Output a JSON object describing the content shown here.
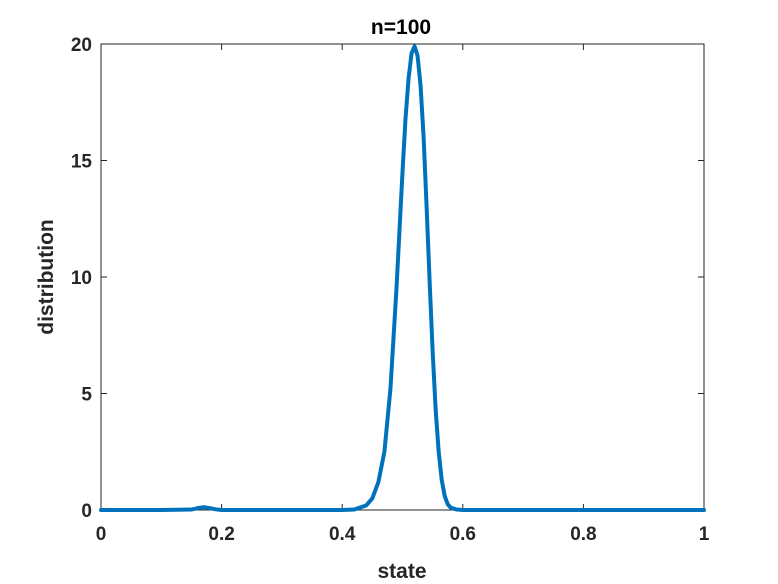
{
  "chart_data": {
    "type": "line",
    "title": "n=100",
    "xlabel": "state",
    "ylabel": "distribution",
    "xlim": [
      0,
      1
    ],
    "ylim": [
      0,
      20
    ],
    "xticks": [
      0,
      0.2,
      0.4,
      0.6,
      0.8,
      1
    ],
    "xtick_labels": [
      "0",
      "0.2",
      "0.4",
      "0.6",
      "0.8",
      "1"
    ],
    "yticks": [
      0,
      5,
      10,
      15,
      20
    ],
    "ytick_labels": [
      "0",
      "5",
      "10",
      "15",
      "20"
    ],
    "grid": false,
    "series": [
      {
        "color": "#0072BD",
        "x": [
          0,
          0.1,
          0.15,
          0.16,
          0.17,
          0.18,
          0.19,
          0.2,
          0.25,
          0.3,
          0.35,
          0.4,
          0.42,
          0.44,
          0.45,
          0.46,
          0.47,
          0.48,
          0.49,
          0.5,
          0.505,
          0.51,
          0.515,
          0.52,
          0.525,
          0.53,
          0.535,
          0.54,
          0.545,
          0.55,
          0.555,
          0.56,
          0.565,
          0.57,
          0.575,
          0.58,
          0.59,
          0.6,
          0.65,
          0.7,
          0.8,
          0.9,
          1
        ],
        "y": [
          0,
          0,
          0.02,
          0.08,
          0.12,
          0.08,
          0.03,
          0,
          0,
          0,
          0,
          0,
          0.02,
          0.2,
          0.5,
          1.2,
          2.5,
          5.2,
          9.5,
          14.5,
          16.8,
          18.5,
          19.6,
          19.9,
          19.5,
          18.2,
          16.0,
          13.0,
          9.8,
          6.8,
          4.3,
          2.5,
          1.3,
          0.6,
          0.25,
          0.1,
          0.02,
          0,
          0,
          0,
          0,
          0,
          0
        ]
      }
    ]
  }
}
